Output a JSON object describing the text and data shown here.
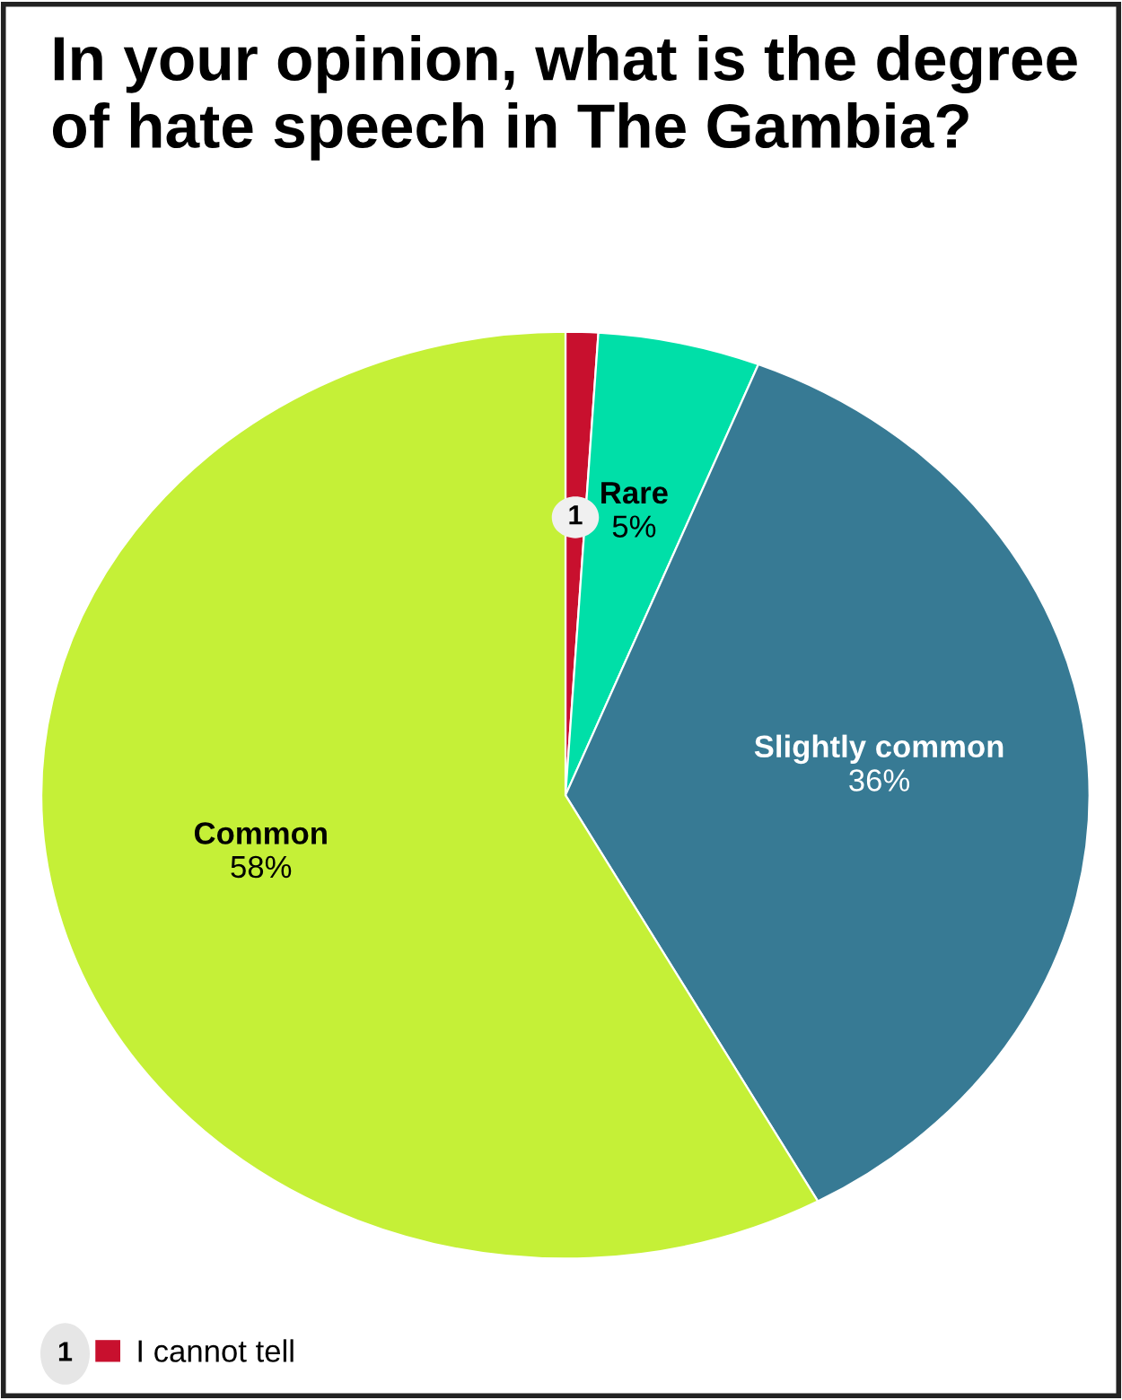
{
  "chart_data": {
    "type": "pie",
    "title": "In your opinion, what is the degree of hate speech in The Gambia?",
    "categories": [
      "I cannot tell",
      "Rare",
      "Slightly common",
      "Common"
    ],
    "values": [
      1,
      5,
      36,
      58
    ],
    "colors": [
      "#c8102e",
      "#00dfa8",
      "#377a94",
      "#c5f037"
    ],
    "value_labels": [
      "1",
      "5%",
      "36%",
      "58%"
    ]
  }
}
